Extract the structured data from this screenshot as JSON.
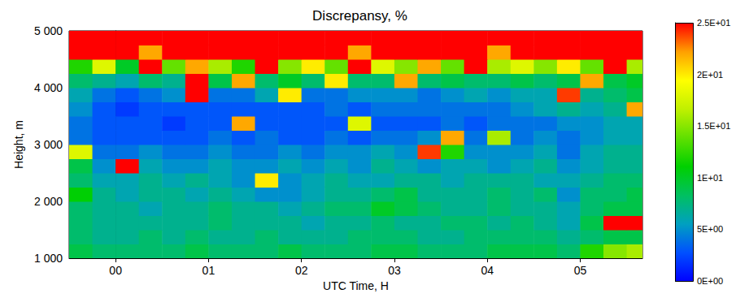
{
  "chart_data": {
    "type": "heatmap",
    "title": "Discrepansy, %",
    "x_label": "UTC Time, H",
    "y_label": "Height, m",
    "xlim": [
      -0.5,
      5.67
    ],
    "xticks": [
      {
        "value": 0,
        "label": "00"
      },
      {
        "value": 1,
        "label": "01"
      },
      {
        "value": 2,
        "label": "02"
      },
      {
        "value": 3,
        "label": "03"
      },
      {
        "value": 4,
        "label": "04"
      },
      {
        "value": 5,
        "label": "05"
      }
    ],
    "ylim": [
      1000,
      5000
    ],
    "yticks": [
      {
        "value": 1000,
        "label": "1 000"
      },
      {
        "value": 2000,
        "label": "2 000"
      },
      {
        "value": 3000,
        "label": "3 000"
      },
      {
        "value": 4000,
        "label": "4 000"
      },
      {
        "value": 5000,
        "label": "5 000"
      }
    ],
    "cells": {
      "x_edges": [
        -0.5,
        -0.25,
        0,
        0.25,
        0.5,
        0.75,
        1,
        1.25,
        1.5,
        1.75,
        2,
        2.25,
        2.5,
        2.75,
        3,
        3.25,
        3.5,
        3.75,
        4,
        4.25,
        4.5,
        4.75,
        5,
        5.25,
        5.5,
        5.67
      ],
      "y_edges": [
        1000,
        1250,
        1500,
        1750,
        2000,
        2250,
        2500,
        2750,
        3000,
        3250,
        3500,
        3750,
        4000,
        4250,
        4500,
        4750,
        5000
      ],
      "values": [
        [
          9,
          8,
          8,
          8,
          8,
          9,
          8,
          8,
          8,
          9,
          8,
          8,
          8,
          9,
          9,
          8,
          8,
          8,
          9,
          9,
          9,
          8,
          12,
          15,
          16
        ],
        [
          8,
          7,
          7,
          8,
          7,
          8,
          7,
          7,
          8,
          7,
          7,
          7,
          8,
          8,
          8,
          7,
          7,
          8,
          8,
          8,
          8,
          7,
          8,
          9,
          9
        ],
        [
          8,
          7,
          7,
          7,
          7,
          7,
          8,
          7,
          7,
          7,
          6,
          7,
          7,
          8,
          7,
          7,
          8,
          8,
          7,
          8,
          7,
          6,
          9,
          28,
          28
        ],
        [
          8,
          7,
          7,
          6,
          7,
          7,
          8,
          7,
          7,
          6,
          7,
          8,
          8,
          10,
          9,
          8,
          7,
          7,
          8,
          7,
          7,
          6,
          8,
          9,
          9
        ],
        [
          11,
          7,
          6,
          7,
          7,
          6,
          7,
          6,
          5,
          5,
          6,
          7,
          7,
          8,
          9,
          7,
          7,
          7,
          8,
          7,
          8,
          5,
          8,
          8,
          9
        ],
        [
          8,
          6,
          6,
          7,
          6,
          7,
          6,
          5,
          20,
          5,
          6,
          7,
          6,
          6,
          7,
          7,
          6,
          7,
          7,
          7,
          6,
          6,
          7,
          8,
          8
        ],
        [
          9,
          5,
          25,
          6,
          5,
          5,
          6,
          5,
          5,
          6,
          5,
          6,
          5,
          7,
          6,
          5,
          6,
          6,
          5,
          6,
          7,
          5,
          6,
          7,
          7
        ],
        [
          18,
          4,
          4,
          5,
          4,
          4,
          5,
          4,
          4,
          5,
          4,
          5,
          5,
          6,
          5,
          24,
          12,
          5,
          5,
          5,
          6,
          4,
          6,
          7,
          7
        ],
        [
          4,
          3,
          3,
          3,
          3,
          3,
          4,
          3,
          4,
          3,
          3,
          4,
          3,
          4,
          4,
          5,
          22,
          4,
          16,
          4,
          5,
          4,
          5,
          6,
          6
        ],
        [
          4,
          3,
          3,
          3,
          2,
          3,
          3,
          22,
          3,
          3,
          3,
          3,
          18,
          3,
          3,
          3,
          4,
          3,
          4,
          4,
          4,
          5,
          5,
          6,
          6
        ],
        [
          5,
          3,
          2,
          3,
          3,
          3,
          3,
          3,
          3,
          3,
          3,
          4,
          3,
          4,
          4,
          4,
          4,
          4,
          4,
          5,
          6,
          7,
          6,
          7,
          22
        ],
        [
          6,
          4,
          3,
          4,
          5,
          25,
          4,
          4,
          6,
          20,
          4,
          4,
          5,
          5,
          5,
          4,
          5,
          6,
          5,
          6,
          6,
          24,
          7,
          8,
          9
        ],
        [
          8,
          7,
          6,
          8,
          7,
          25,
          9,
          22,
          8,
          10,
          8,
          20,
          8,
          8,
          22,
          8,
          9,
          8,
          8,
          9,
          8,
          9,
          22,
          9,
          10
        ],
        [
          12,
          18,
          10,
          25,
          14,
          22,
          16,
          12,
          25,
          15,
          20,
          14,
          25,
          18,
          15,
          22,
          14,
          25,
          16,
          18,
          15,
          20,
          14,
          25,
          16
        ],
        [
          25,
          28,
          25,
          22,
          28,
          25,
          25,
          30,
          25,
          28,
          25,
          25,
          22,
          28,
          25,
          25,
          28,
          25,
          22,
          25,
          28,
          25,
          28,
          25,
          25
        ],
        [
          30,
          30,
          30,
          30,
          30,
          30,
          30,
          30,
          30,
          30,
          30,
          30,
          30,
          30,
          30,
          30,
          30,
          30,
          30,
          30,
          30,
          30,
          30,
          30,
          30
        ]
      ]
    },
    "colorbar": {
      "range": [
        0,
        25
      ],
      "ticks": [
        {
          "value": 0,
          "label": "0E+00"
        },
        {
          "value": 5,
          "label": "5E+00"
        },
        {
          "value": 10,
          "label": "1E+01"
        },
        {
          "value": 15,
          "label": "1.5E+01"
        },
        {
          "value": 20,
          "label": "2E+01"
        },
        {
          "value": 25,
          "label": "2.5E+01"
        }
      ],
      "colors": [
        "#0000ff",
        "#0050ff",
        "#00a0c0",
        "#00c060",
        "#00d000",
        "#60e000",
        "#c0f000",
        "#ffff00",
        "#ffa000",
        "#ff0000"
      ]
    }
  }
}
